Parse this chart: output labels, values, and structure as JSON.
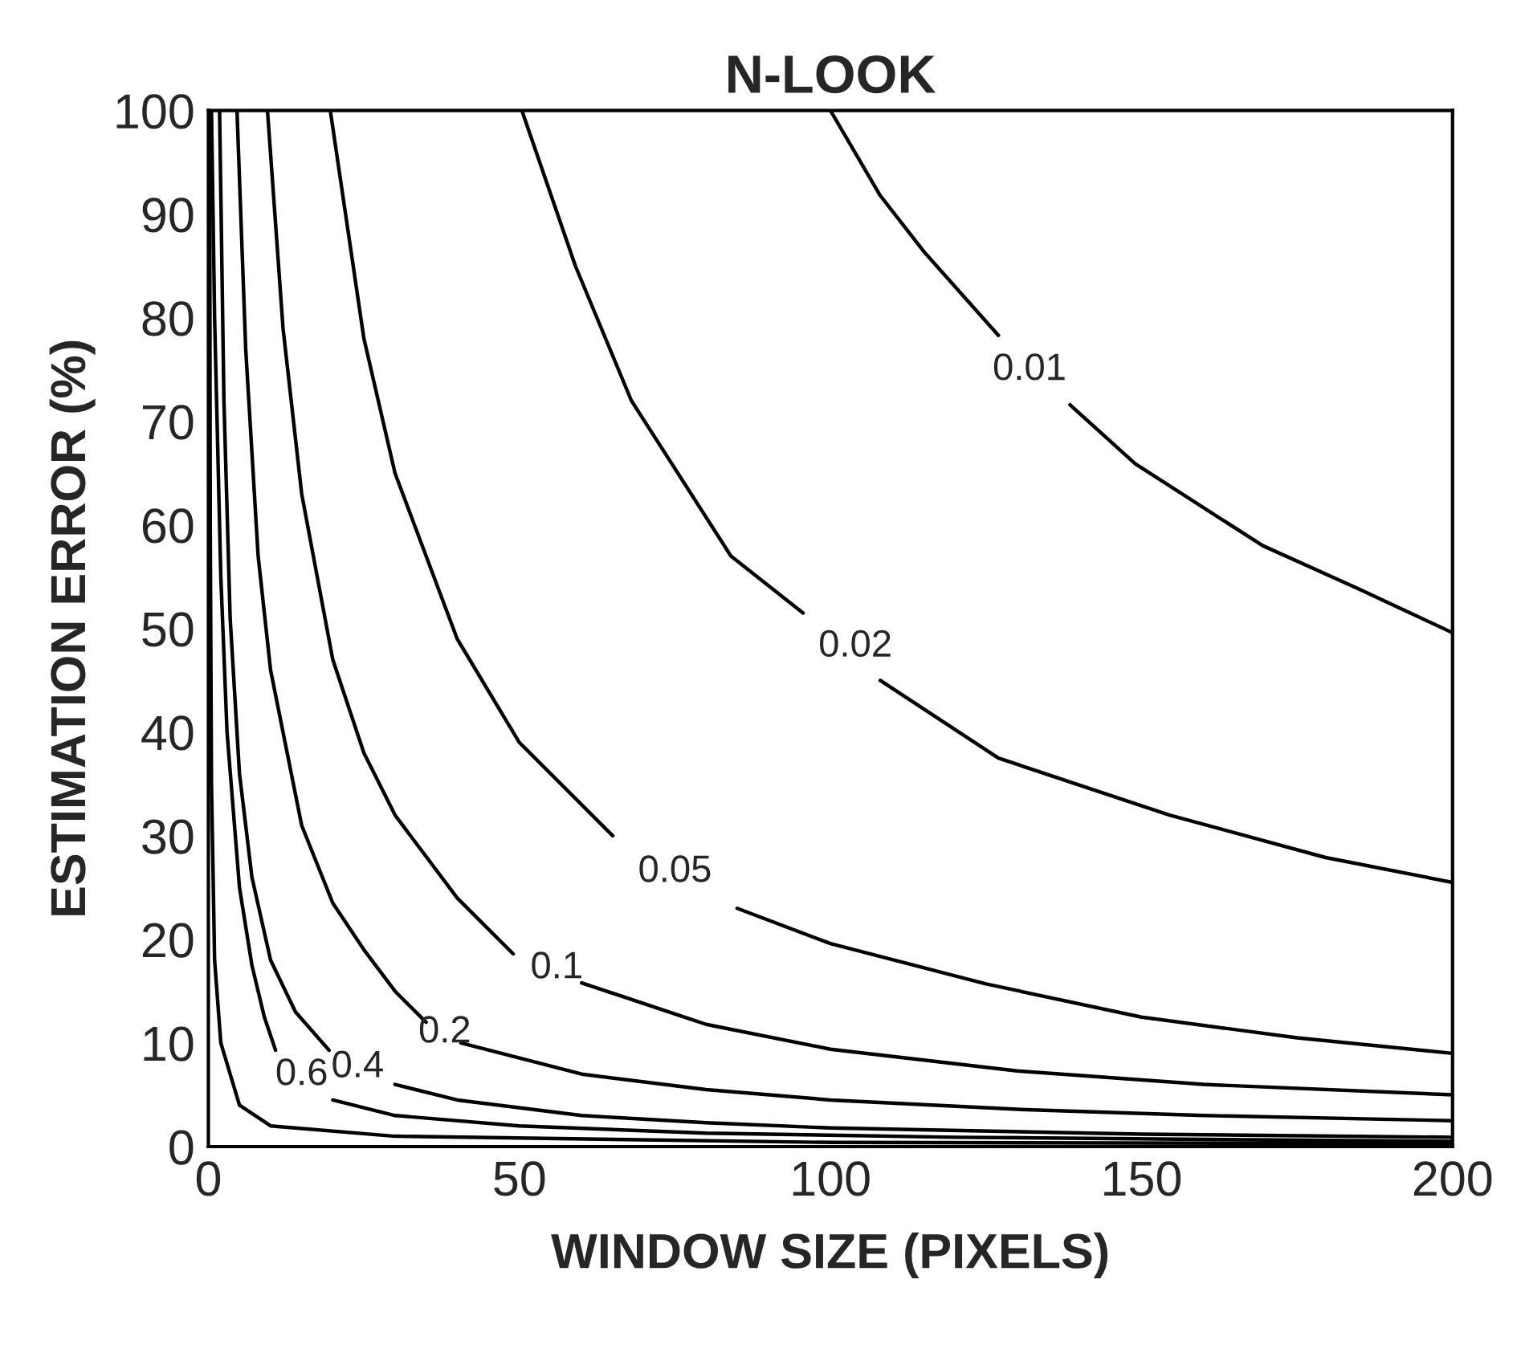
{
  "chart_data": {
    "type": "line",
    "title": "N-LOOK",
    "xlabel": "WINDOW SIZE (PIXELS)",
    "ylabel": "ESTIMATION ERROR (%)",
    "xlim": [
      0,
      200
    ],
    "ylim": [
      0,
      100
    ],
    "xticks": [
      0,
      50,
      100,
      150,
      200
    ],
    "yticks": [
      0,
      10,
      20,
      30,
      40,
      50,
      60,
      70,
      80,
      90,
      100
    ],
    "grid": false,
    "legend": false,
    "marker": "none",
    "line_style": "solid",
    "series": [
      {
        "name": "0.01",
        "color": "#000000",
        "x": [
          100,
          108,
          115,
          127,
          132,
          138.5,
          149,
          169.5,
          185,
          200
        ],
        "values": [
          100,
          91.8,
          86.4,
          78.3,
          null,
          71.6,
          65.9,
          58,
          53.8,
          49.6
        ]
      },
      {
        "name": "0.02",
        "color": "#000000",
        "x": [
          50.4,
          59,
          68,
          84,
          95.6,
          104,
          108,
          127,
          154.5,
          179.6,
          200
        ],
        "values": [
          100,
          85,
          72,
          57,
          51.5,
          null,
          45,
          37.5,
          32,
          27.9,
          25.5
        ]
      },
      {
        "name": "0.05",
        "color": "#000000",
        "x": [
          19.6,
          25,
          30,
          40,
          50,
          65,
          75,
          85,
          100,
          125,
          150,
          175,
          200
        ],
        "values": [
          100,
          78,
          65,
          49,
          39,
          30,
          null,
          23,
          19.6,
          15.7,
          12.5,
          10.5,
          9
        ]
      },
      {
        "name": "0.1",
        "color": "#000000",
        "x": [
          9.5,
          12,
          15,
          20,
          25,
          30,
          40,
          49,
          56,
          60,
          80,
          100,
          130,
          160,
          200
        ],
        "values": [
          100,
          79,
          63,
          47,
          38,
          32,
          24,
          18.6,
          null,
          15.8,
          11.8,
          9.4,
          7.3,
          6,
          5
        ]
      },
      {
        "name": "0.2",
        "color": "#000000",
        "x": [
          4.6,
          6,
          8,
          10,
          15,
          20,
          25,
          30,
          35,
          38,
          40.6,
          60,
          80,
          100,
          130,
          160,
          200
        ],
        "values": [
          100,
          77,
          57,
          46,
          31,
          23.5,
          19,
          15,
          12,
          null,
          10,
          7,
          5.5,
          4.5,
          3.6,
          3,
          2.5
        ]
      },
      {
        "name": "0.4",
        "color": "#000000",
        "x": [
          1.8,
          2.5,
          3.5,
          5,
          7,
          10,
          14,
          19.4,
          24,
          30,
          40,
          60,
          80,
          100,
          150,
          200
        ],
        "values": [
          100,
          72,
          51,
          36,
          26,
          18,
          13,
          9.3,
          null,
          6,
          4.5,
          3,
          2.3,
          1.8,
          1.2,
          0.9
        ]
      },
      {
        "name": "0.6",
        "color": "#000000",
        "x": [
          0.5,
          1,
          2,
          3,
          5,
          7,
          9,
          10.8,
          15,
          20,
          30,
          50,
          80,
          120,
          200
        ],
        "values": [
          100,
          80,
          55,
          40,
          25,
          17.5,
          12.5,
          9.3,
          null,
          4.5,
          3,
          2,
          1.3,
          0.9,
          0.5
        ]
      },
      {
        "color": "#000000",
        "x": [
          0.2,
          0.3,
          0.5,
          1,
          2,
          5,
          10,
          30,
          100,
          200
        ],
        "values": [
          100,
          60,
          35,
          18,
          10,
          4,
          2,
          1,
          0.4,
          0.3
        ]
      }
    ]
  }
}
